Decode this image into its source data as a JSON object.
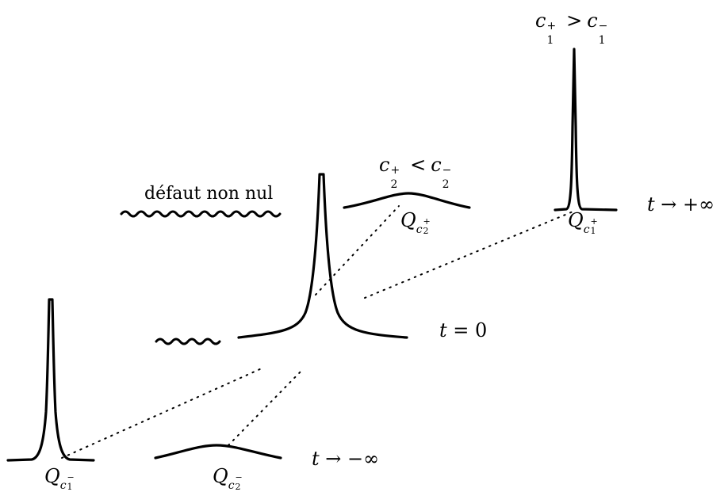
{
  "labels": {
    "defaut": "défaut non nul",
    "t_plus": {
      "t": "t",
      "arrow": "→",
      "rhs": "+∞"
    },
    "t_zero": {
      "t": "t",
      "eq": "=",
      "rhs": "0"
    },
    "t_minus": {
      "t": "t",
      "arrow": "→",
      "rhs": "−∞"
    },
    "cond_top": {
      "a": "c",
      "a_sup": "+",
      "a_sub": "1",
      "op": ">",
      "b": "c",
      "b_sup": "−",
      "b_sub": "1"
    },
    "cond_mid": {
      "a": "c",
      "a_sup": "+",
      "a_sub": "2",
      "op": "<",
      "b": "c",
      "b_sup": "−",
      "b_sub": "2"
    },
    "q_c1_plus": {
      "q": "Q",
      "c": "c",
      "sup": "+",
      "sub": "1"
    },
    "q_c2_plus": {
      "q": "Q",
      "c": "c",
      "sup": "+",
      "sub": "2"
    },
    "q_c1_minus": {
      "q": "Q",
      "c": "c",
      "sup": "−",
      "sub": "1"
    },
    "q_c2_minus": {
      "q": "Q",
      "c": "c",
      "sup": "−",
      "sub": "2"
    }
  }
}
